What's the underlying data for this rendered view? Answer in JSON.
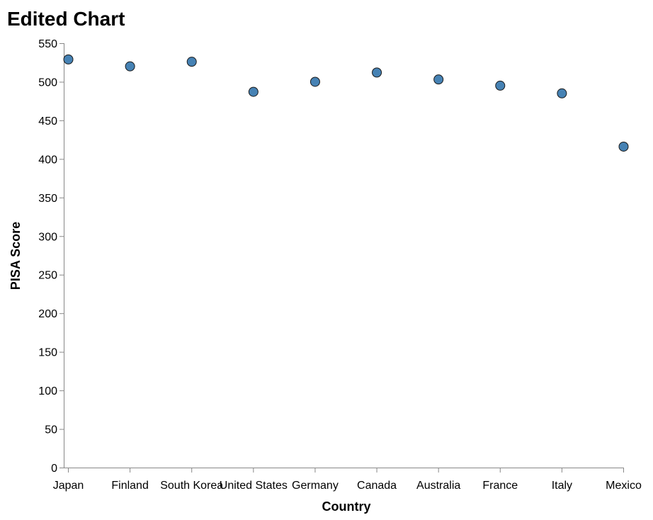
{
  "chart_data": {
    "type": "scatter",
    "title": "Edited Chart",
    "xlabel": "Country",
    "ylabel": "PISA Score",
    "categories": [
      "Japan",
      "Finland",
      "South Korea",
      "United States",
      "Germany",
      "Canada",
      "Australia",
      "France",
      "Italy",
      "Mexico"
    ],
    "values": [
      529,
      520,
      526,
      487,
      500,
      512,
      503,
      495,
      485,
      416
    ],
    "ylim": [
      0,
      550
    ],
    "yticks": [
      0,
      50,
      100,
      150,
      200,
      250,
      300,
      350,
      400,
      450,
      500,
      550
    ],
    "grid": false,
    "point_color": "#4682b4"
  }
}
